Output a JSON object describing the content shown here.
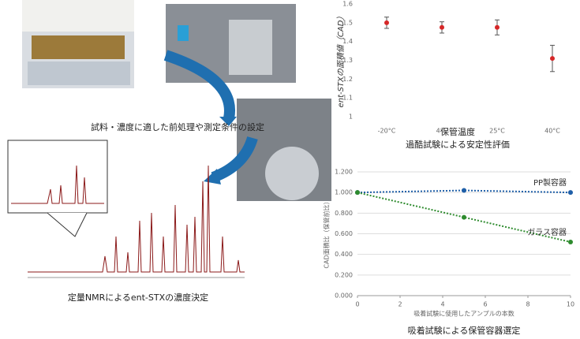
{
  "captions": {
    "pretreatment": "試料・濃度に適した前処理や測定条件の設定",
    "qnmr": "定量NMRによるent-STXの濃度決定"
  },
  "chart_data": [
    {
      "type": "errorbar",
      "caption": "過酷試験による安定性評価",
      "x_label": "保管温度",
      "y_label": "ent-STXの面積値（CAD）",
      "categories": [
        "-20°C",
        "4°C",
        "25°C",
        "40°C"
      ],
      "values": [
        1.5,
        1.475,
        1.475,
        1.31
      ],
      "errors": [
        0.03,
        0.03,
        0.04,
        0.07
      ],
      "color": "#d62728",
      "ylim": [
        1,
        1.6
      ],
      "yticks": [
        1,
        1.1,
        1.2,
        1.3,
        1.4,
        1.5,
        1.6
      ]
    },
    {
      "type": "line",
      "caption": "吸着試験による保管容器選定",
      "x_label": "吸着試験に使用したアンプルの本数",
      "y_label": "CAD面積比（保管前比）",
      "x": [
        0,
        5,
        10
      ],
      "series": [
        {
          "name": "PP製容器",
          "color": "#1f5fa8",
          "values": [
            1.0,
            1.02,
            1.0
          ]
        },
        {
          "name": "ガラス容器",
          "color": "#2e8b2e",
          "values": [
            1.0,
            0.76,
            0.52
          ]
        }
      ],
      "xlim": [
        0,
        10
      ],
      "xticks": [
        0,
        2,
        4,
        6,
        8,
        10
      ],
      "ylim": [
        0,
        1.2
      ],
      "yticks": [
        {
          "value": 0,
          "label": "0.000"
        },
        {
          "value": 0.2,
          "label": "0.200"
        },
        {
          "value": 0.4,
          "label": "0.400"
        },
        {
          "value": 0.6,
          "label": "0.600"
        },
        {
          "value": 0.8,
          "label": "0.800"
        },
        {
          "value": 1,
          "label": "1.000"
        },
        {
          "value": 1.2,
          "label": "1.200"
        }
      ],
      "grid": true
    }
  ]
}
